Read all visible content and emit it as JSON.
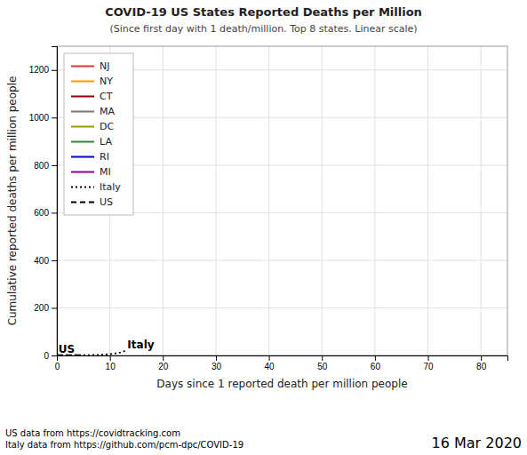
{
  "chart_data": {
    "type": "line",
    "title": "COVID-19 US States Reported Deaths per Million",
    "subtitle": "(Since first day with 1 death/million. Top 8 states. Linear scale)",
    "x_label": "Days since 1 reported death per million people",
    "y_label": "Cumulative reported deaths per million people",
    "xlim": [
      0,
      85
    ],
    "ylim": [
      0,
      1300
    ],
    "xticks": [
      0,
      10,
      20,
      30,
      40,
      50,
      60,
      70,
      80
    ],
    "yticks": [
      0,
      200,
      400,
      600,
      800,
      1000,
      1200
    ],
    "grid": true,
    "legend": "upper left",
    "series": [
      {
        "name": "NJ",
        "color": "#e83030",
        "line_style": "solid",
        "x": [],
        "values": []
      },
      {
        "name": "NY",
        "color": "#ff9900",
        "line_style": "solid",
        "x": [],
        "values": []
      },
      {
        "name": "CT",
        "color": "#8b0000",
        "line_style": "solid",
        "x": [],
        "values": []
      },
      {
        "name": "MA",
        "color": "#777777",
        "line_style": "solid",
        "x": [],
        "values": []
      },
      {
        "name": "DC",
        "color": "#999900",
        "line_style": "solid",
        "x": [],
        "values": []
      },
      {
        "name": "LA",
        "color": "#228b22",
        "line_style": "solid",
        "x": [],
        "values": []
      },
      {
        "name": "RI",
        "color": "#0000cc",
        "line_style": "solid",
        "x": [],
        "values": []
      },
      {
        "name": "MI",
        "color": "#8b008b",
        "line_style": "solid",
        "x": [],
        "values": []
      },
      {
        "name": "Italy",
        "color": "#000000",
        "line_style": "dotted",
        "x": [
          0,
          1,
          2,
          3,
          4,
          5,
          6,
          7,
          8,
          9,
          10,
          11,
          12,
          13
        ],
        "values": [
          1,
          1.05,
          1.1,
          1.2,
          1.3,
          1.5,
          1.7,
          2.0,
          2.5,
          3.5,
          5.5,
          8.5,
          13.0,
          20.0
        ]
      },
      {
        "name": "US",
        "color": "#000000",
        "line_style": "dashed",
        "x": [
          0,
          1,
          2,
          3,
          4,
          5
        ],
        "values": [
          1,
          1.05,
          1.1,
          1.15,
          1.2,
          1.3
        ]
      }
    ],
    "annotations": [
      {
        "text": "US",
        "x": 0.3,
        "y": 5
      },
      {
        "text": "Italy",
        "x": 13.3,
        "y": 22
      }
    ],
    "notes": [
      "US data from https://covidtracking.com",
      "Italy data from https://github.com/pcm-dpc/COVID-19"
    ],
    "date": "16 Mar 2020"
  }
}
